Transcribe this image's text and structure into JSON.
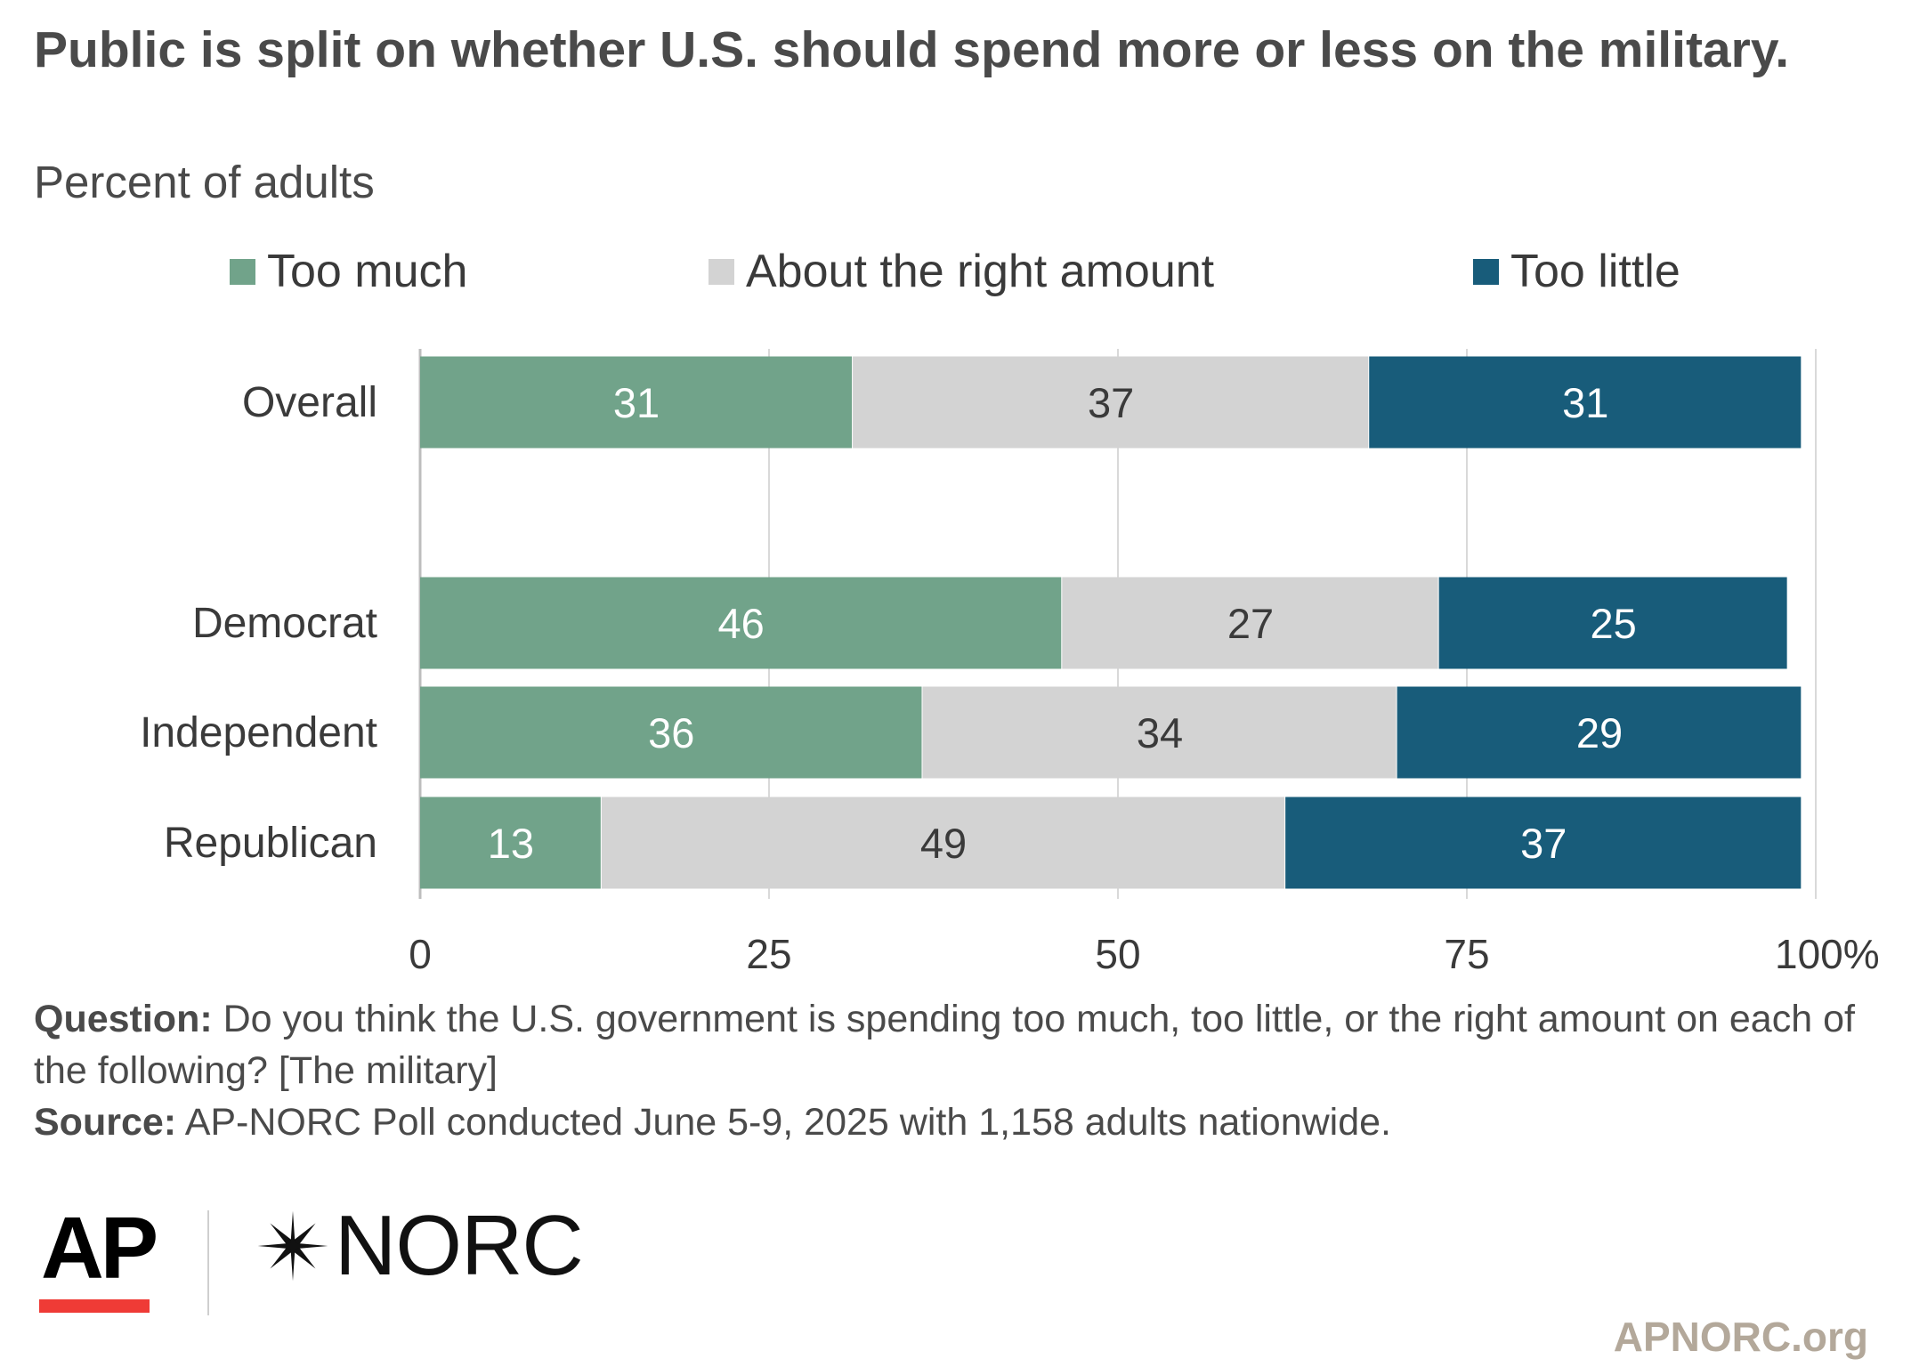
{
  "header": {
    "title": "Public is split on whether U.S. should spend more or less on the military.",
    "subtitle": "Percent of adults"
  },
  "chart_data": {
    "type": "bar",
    "orientation": "horizontal",
    "stacked": true,
    "categories": [
      "Overall",
      "Democrat",
      "Independent",
      "Republican"
    ],
    "series": [
      {
        "name": "Too much",
        "values": [
          31,
          46,
          36,
          13
        ],
        "color": "#71a38a"
      },
      {
        "name": "About the right amount",
        "values": [
          37,
          27,
          34,
          49
        ],
        "color": "#d3d3d3"
      },
      {
        "name": "Too little",
        "values": [
          31,
          25,
          29,
          37
        ],
        "color": "#185c7a"
      }
    ],
    "x_ticks": [
      "0",
      "25",
      "50",
      "75",
      "100%"
    ],
    "xlim": [
      0,
      100
    ],
    "grid": true,
    "legend_position": "top",
    "label_colors": {
      "light": "#ffffff",
      "dark": "#3a3a3a"
    }
  },
  "notes": {
    "question_label": "Question:",
    "question_text": "Do you think the U.S. government is spending too much, too little, or the right amount on each of the following? [The military]",
    "source_label": "Source:",
    "source_text": "AP-NORC Poll conducted June 5-9, 2025 with 1,158 adults nationwide."
  },
  "logos": {
    "ap": "AP",
    "norc": "NORC",
    "ap_bar_color": "#ef3b36"
  },
  "footer": {
    "site": "APNORC.org"
  }
}
